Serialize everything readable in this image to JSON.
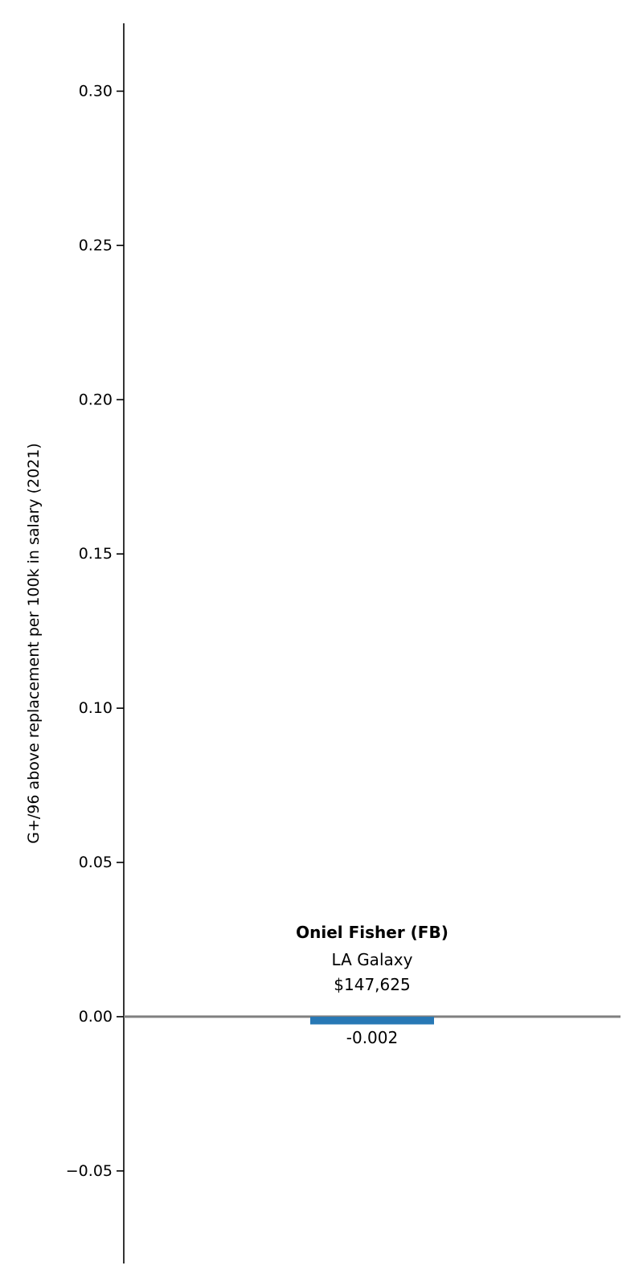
{
  "chart_data": {
    "type": "bar",
    "ylabel": "G+/96 above replacement per 100k in salary (2021)",
    "ylim": [
      -0.08,
      0.322
    ],
    "yticks": [
      -0.05,
      0.0,
      0.05,
      0.1,
      0.15,
      0.2,
      0.25,
      0.3
    ],
    "ytick_labels": [
      "−0.05",
      "0.00",
      "0.05",
      "0.10",
      "0.15",
      "0.20",
      "0.25",
      "0.30"
    ],
    "grid": false,
    "bars": [
      {
        "player": "Oniel Fisher (FB)",
        "team": "LA Galaxy",
        "salary": "$147,625",
        "value": -0.0025,
        "value_label": "-0.002"
      }
    ],
    "colors": {
      "bar": "#2878b5",
      "zero_line": "#808080",
      "axis": "#000000"
    }
  }
}
